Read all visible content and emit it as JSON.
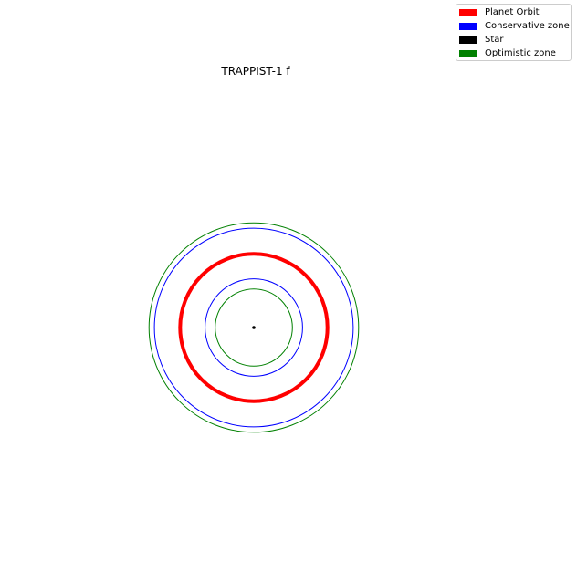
{
  "title": "TRAPPIST-1 f",
  "colors": {
    "planet_orbit": "#ff0000",
    "conservative_zone": "#0000ff",
    "star": "#000000",
    "optimistic_zone": "#008000"
  },
  "legend": {
    "items": [
      {
        "key": "planet_orbit",
        "label": "Planet Orbit",
        "color": "#ff0000"
      },
      {
        "key": "conservative_zone",
        "label": "Conservative zone",
        "color": "#0000ff"
      },
      {
        "key": "star",
        "label": "Star",
        "color": "#000000"
      },
      {
        "key": "optimistic_zone",
        "label": "Optimistic zone",
        "color": "#008000"
      }
    ]
  },
  "diagram": {
    "planet_orbit": {
      "radius": 0.0385,
      "color": "#ff0000"
    },
    "conservative_zone": {
      "inner_radius": 0.0255,
      "outer_radius": 0.052,
      "color": "#0000ff"
    },
    "optimistic_zone": {
      "inner_radius": 0.0202,
      "outer_radius": 0.0548,
      "color": "#008000"
    },
    "star": {
      "color": "#000000"
    }
  }
}
